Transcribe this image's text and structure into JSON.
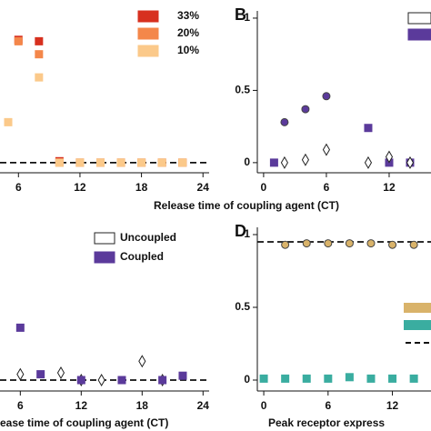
{
  "chart_data": [
    {
      "type": "scatter",
      "xlabel": "Release time of coupling agent (CT)",
      "xlim": [
        4.2,
        24.6
      ],
      "ylim": [
        -0.07,
        1.05
      ],
      "xticks": [
        6,
        12,
        18,
        24
      ],
      "reference_line": 0,
      "series": [
        {
          "name": "33%",
          "color": "#d7301f",
          "marker": "square",
          "filled": true,
          "x": [
            6,
            8,
            10,
            12,
            14,
            16,
            18,
            20,
            22
          ],
          "values": [
            0.85,
            0.84,
            0.01,
            0,
            0,
            0,
            0,
            0,
            0
          ]
        },
        {
          "name": "20%",
          "color": "#f4874a",
          "marker": "square",
          "filled": true,
          "x": [
            6,
            8,
            10,
            12,
            14,
            16,
            18,
            20,
            22
          ],
          "values": [
            0.84,
            0.75,
            0,
            0,
            0,
            0,
            0,
            0,
            0
          ]
        },
        {
          "name": "10%",
          "color": "#fbc98a",
          "marker": "square",
          "filled": true,
          "x": [
            5,
            8,
            10,
            12,
            14,
            16,
            18,
            20,
            22
          ],
          "values": [
            0.28,
            0.59,
            0,
            0,
            0,
            0,
            0,
            0,
            0
          ]
        }
      ]
    },
    {
      "type": "scatter",
      "panel_label": "B",
      "xlim": [
        -0.6,
        16
      ],
      "ylim": [
        -0.07,
        1.05
      ],
      "xticks": [
        0,
        6,
        12
      ],
      "yticks": [
        0,
        0.5,
        1
      ],
      "series": [
        {
          "color": "#5b3a9b",
          "marker": "circle",
          "filled": true,
          "x": [
            2,
            4,
            6
          ],
          "values": [
            0.28,
            0.37,
            0.46
          ]
        },
        {
          "color": "#5b3a9b",
          "marker": "square",
          "filled": true,
          "x": [
            1,
            10,
            12,
            14
          ],
          "values": [
            0,
            0.24,
            0,
            0
          ]
        },
        {
          "color": "#222222",
          "marker": "diamond",
          "filled": false,
          "x": [
            2,
            4,
            6,
            10,
            12,
            14
          ],
          "values": [
            0,
            0.02,
            0.09,
            0,
            0.04,
            0
          ]
        }
      ]
    },
    {
      "type": "scatter",
      "xlabel": "ease time of coupling agent (CT)",
      "xlim": [
        4,
        24.6
      ],
      "ylim": [
        -0.075,
        1.05
      ],
      "xticks": [
        6,
        12,
        18,
        24
      ],
      "reference_line": 0,
      "series": [
        {
          "name": "Uncoupled",
          "color": "#222222",
          "marker": "diamond",
          "filled": false,
          "x": [
            6,
            10,
            12,
            14,
            18,
            20
          ],
          "values": [
            0.04,
            0.05,
            0,
            0,
            0.13,
            0
          ]
        },
        {
          "name": "Coupled",
          "color": "#5b3a9b",
          "marker": "square",
          "filled": true,
          "x": [
            6,
            8,
            12,
            16,
            20,
            22
          ],
          "values": [
            0.36,
            0.04,
            0,
            0,
            0,
            0.03
          ]
        }
      ]
    },
    {
      "type": "scatter",
      "panel_label": "D",
      "xlabel": "Peak receptor express",
      "xlim": [
        -0.6,
        15.6
      ],
      "ylim": [
        -0.075,
        1.05
      ],
      "xticks": [
        0,
        6,
        12
      ],
      "yticks": [
        0,
        0.5,
        1
      ],
      "reference_line": 0.95,
      "series": [
        {
          "color": "#d9b36a",
          "marker": "circle",
          "filled": true,
          "x": [
            2,
            4,
            6,
            8,
            10,
            12,
            14
          ],
          "values": [
            0.93,
            0.94,
            0.94,
            0.94,
            0.94,
            0.93,
            0.93
          ]
        },
        {
          "color": "#3aada0",
          "marker": "square",
          "filled": true,
          "x": [
            0,
            2,
            4,
            6,
            8,
            10,
            12,
            14
          ],
          "values": [
            0.01,
            0.01,
            0.01,
            0.01,
            0.02,
            0.01,
            0.01,
            0.01
          ]
        }
      ]
    }
  ]
}
